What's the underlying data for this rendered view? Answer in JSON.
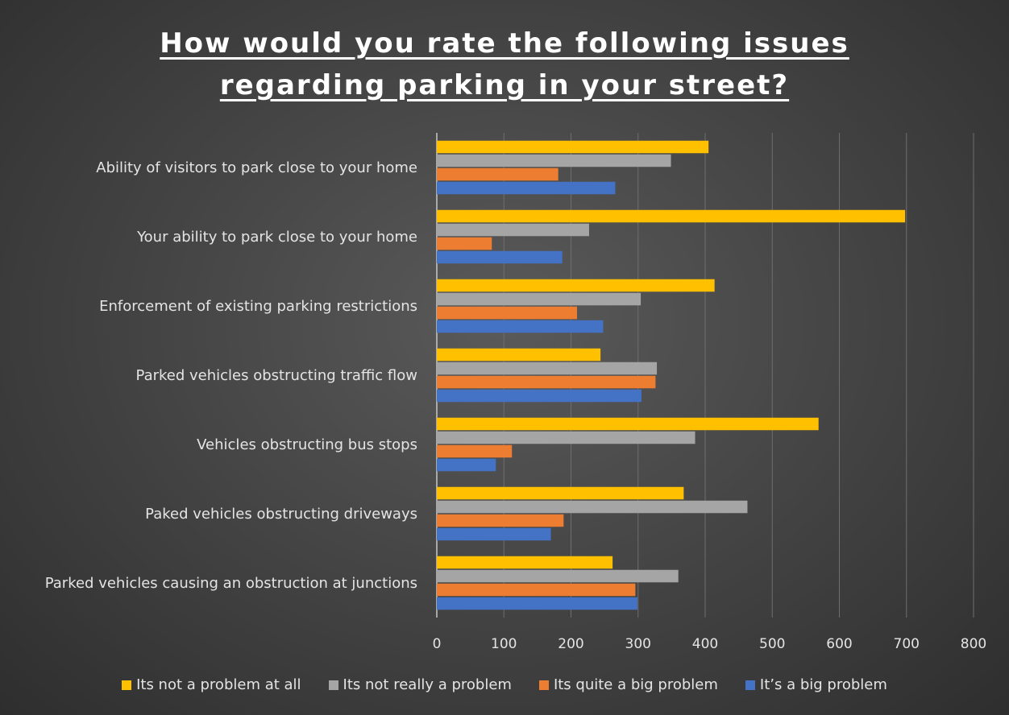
{
  "chart_data": {
    "type": "bar",
    "orientation": "horizontal",
    "title_lines": [
      "How would you rate the following issues",
      "regarding parking in your street?"
    ],
    "categories": [
      "Ability of visitors to park close to your home",
      "Your ability to park close to your home",
      "Enforcement of existing parking restrictions",
      "Parked vehicles obstructing traffic flow",
      "Vehicles obstructing bus stops",
      "Paked vehicles obstructing driveways",
      "Parked vehicles causing an obstruction at junctions"
    ],
    "series": [
      {
        "name": "Its not a problem at all",
        "color": "#ffc000",
        "values": [
          405,
          698,
          414,
          244,
          569,
          368,
          262
        ]
      },
      {
        "name": "Its not really a problem",
        "color": "#a5a5a5",
        "values": [
          349,
          227,
          304,
          328,
          385,
          463,
          360
        ]
      },
      {
        "name": "Its quite a big problem",
        "color": "#ed7d31",
        "values": [
          181,
          82,
          209,
          326,
          112,
          189,
          296
        ]
      },
      {
        "name": "It’s a big problem",
        "color": "#4472c4",
        "values": [
          266,
          187,
          248,
          305,
          88,
          170,
          299
        ]
      }
    ],
    "xlim": [
      0,
      800
    ],
    "x_ticks": [
      "0",
      "100",
      "200",
      "300",
      "400",
      "500",
      "600",
      "700",
      "800"
    ],
    "grid": true,
    "legend_position": "bottom"
  }
}
